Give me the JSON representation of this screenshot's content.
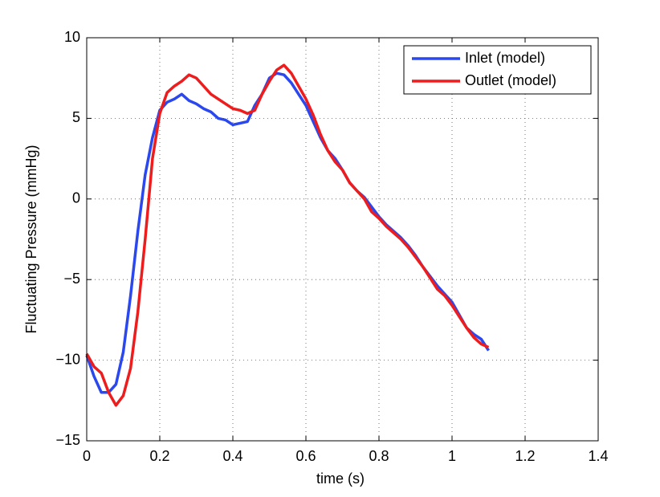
{
  "chart_data": {
    "type": "line",
    "xlabel": "time (s)",
    "ylabel": "Fluctuating Pressure (mmHg)",
    "x": [
      0,
      0.02,
      0.04,
      0.06,
      0.08,
      0.1,
      0.12,
      0.14,
      0.16,
      0.18,
      0.2,
      0.22,
      0.24,
      0.26,
      0.28,
      0.3,
      0.32,
      0.34,
      0.36,
      0.38,
      0.4,
      0.42,
      0.44,
      0.46,
      0.48,
      0.5,
      0.52,
      0.54,
      0.56,
      0.58,
      0.6,
      0.62,
      0.64,
      0.66,
      0.68,
      0.7,
      0.72,
      0.74,
      0.76,
      0.78,
      0.8,
      0.82,
      0.84,
      0.86,
      0.88,
      0.9,
      0.92,
      0.94,
      0.96,
      0.98,
      1.0,
      1.02,
      1.04,
      1.06,
      1.08,
      1.1
    ],
    "series": [
      {
        "name": "Inlet (model)",
        "color": "#2b47ee",
        "values": [
          -9.7,
          -11,
          -12,
          -12,
          -11.5,
          -9.5,
          -6,
          -2,
          1.5,
          3.8,
          5.5,
          6,
          6.2,
          6.5,
          6.1,
          5.9,
          5.6,
          5.4,
          5,
          4.9,
          4.6,
          4.7,
          4.8,
          5.8,
          6.5,
          7.5,
          7.8,
          7.7,
          7.2,
          6.5,
          5.8,
          4.8,
          3.8,
          3,
          2.5,
          1.8,
          1,
          0.5,
          0.1,
          -0.5,
          -1.1,
          -1.6,
          -2,
          -2.4,
          -2.9,
          -3.5,
          -4.2,
          -4.8,
          -5.4,
          -5.9,
          -6.4,
          -7.2,
          -8,
          -8.4,
          -8.7,
          -9.4
        ]
      },
      {
        "name": "Outlet (model)",
        "color": "#ee1c1c",
        "values": [
          -9.6,
          -10.4,
          -10.8,
          -12,
          -12.8,
          -12.2,
          -10.5,
          -7,
          -2.5,
          2.5,
          5.3,
          6.6,
          7,
          7.3,
          7.7,
          7.5,
          7,
          6.5,
          6.2,
          5.9,
          5.6,
          5.5,
          5.3,
          5.5,
          6.5,
          7.3,
          8,
          8.3,
          7.8,
          7,
          6.2,
          5.2,
          4,
          3,
          2.3,
          1.8,
          1,
          0.5,
          0,
          -0.8,
          -1.2,
          -1.7,
          -2.1,
          -2.5,
          -3,
          -3.6,
          -4.2,
          -4.9,
          -5.6,
          -6,
          -6.6,
          -7.3,
          -8,
          -8.6,
          -9,
          -9.2
        ]
      }
    ],
    "xlim": [
      0,
      1.4
    ],
    "xticks": [
      0,
      0.2,
      0.4,
      0.6,
      0.8,
      1,
      1.2,
      1.4
    ],
    "ylim": [
      -15,
      10
    ],
    "yticks": [
      {
        "value": -15,
        "label": "−15"
      },
      {
        "value": -10,
        "label": "−10"
      },
      {
        "value": -5,
        "label": "−5"
      },
      0,
      5,
      10
    ],
    "grid": true,
    "legend": "northeast"
  }
}
